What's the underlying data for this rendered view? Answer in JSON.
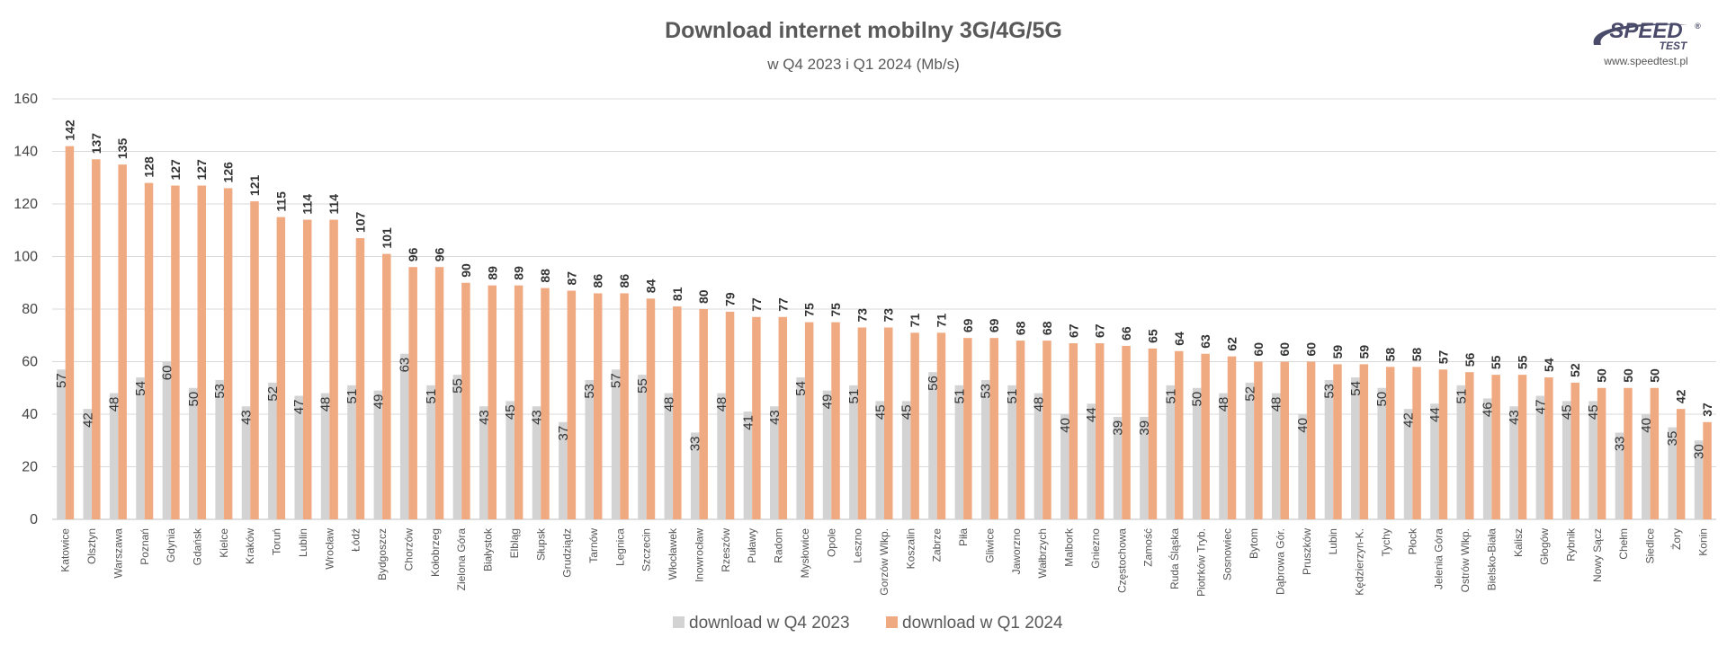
{
  "logo": {
    "word": "SPEED",
    "word2": "TEST",
    "mark": "®",
    "url": "www.speedtest.pl"
  },
  "chart_data": {
    "type": "bar",
    "title": "Download internet mobilny 3G/4G/5G",
    "subtitle": "w Q4 2023 i Q1 2024 (Mb/s)",
    "ylim": [
      0,
      160
    ],
    "yticks": [
      0,
      20,
      40,
      60,
      80,
      100,
      120,
      140,
      160
    ],
    "grid": true,
    "legend_position": "bottom",
    "categories": [
      "Katowice",
      "Olsztyn",
      "Warszawa",
      "Poznań",
      "Gdynia",
      "Gdańsk",
      "Kielce",
      "Kraków",
      "Toruń",
      "Lublin",
      "Wrocław",
      "Łódź",
      "Bydgoszcz",
      "Chorzów",
      "Kołobrzeg",
      "Zielona Góra",
      "Białystok",
      "Elbląg",
      "Słupsk",
      "Grudziądz",
      "Tarnów",
      "Legnica",
      "Szczecin",
      "Włocławek",
      "Inowrocław",
      "Rzeszów",
      "Puławy",
      "Radom",
      "Mysłowice",
      "Opole",
      "Leszno",
      "Gorzów Wlkp.",
      "Koszalin",
      "Zabrze",
      "Piła",
      "Gliwice",
      "Jaworzno",
      "Wałbrzych",
      "Malbork",
      "Gniezno",
      "Częstochowa",
      "Zamość",
      "Ruda Śląska",
      "Piotrków Tryb.",
      "Sosnowiec",
      "Bytom",
      "Dąbrowa Gór.",
      "Pruszków",
      "Lubin",
      "Kędzierzyn-K.",
      "Tychy",
      "Płock",
      "Jelenia Góra",
      "Ostrów Wlkp.",
      "Bielsko-Biała",
      "Kalisz",
      "Głogów",
      "Rybnik",
      "Nowy Sącz",
      "Chełm",
      "Siedlce",
      "Żory",
      "Konin"
    ],
    "series": [
      {
        "name": "download w Q4 2023",
        "color": "#d3d3d3",
        "values": [
          57,
          42,
          48,
          54,
          60,
          50,
          53,
          43,
          52,
          47,
          48,
          51,
          49,
          63,
          51,
          55,
          43,
          45,
          43,
          37,
          53,
          57,
          55,
          48,
          33,
          48,
          41,
          43,
          54,
          49,
          51,
          45,
          45,
          56,
          51,
          53,
          51,
          48,
          40,
          44,
          39,
          39,
          51,
          50,
          48,
          52,
          48,
          40,
          53,
          54,
          50,
          42,
          44,
          51,
          46,
          43,
          47,
          45,
          45,
          33,
          40,
          35,
          30
        ]
      },
      {
        "name": "download w Q1 2024",
        "color": "#f0aa82",
        "values": [
          142,
          137,
          135,
          128,
          127,
          127,
          126,
          121,
          115,
          114,
          114,
          107,
          101,
          96,
          96,
          90,
          89,
          89,
          88,
          87,
          86,
          86,
          84,
          81,
          80,
          79,
          77,
          77,
          75,
          75,
          73,
          73,
          71,
          71,
          69,
          69,
          68,
          68,
          67,
          67,
          66,
          65,
          64,
          63,
          62,
          60,
          60,
          60,
          59,
          59,
          58,
          58,
          57,
          56,
          55,
          55,
          54,
          52,
          50,
          50,
          50,
          42,
          37
        ]
      }
    ]
  }
}
